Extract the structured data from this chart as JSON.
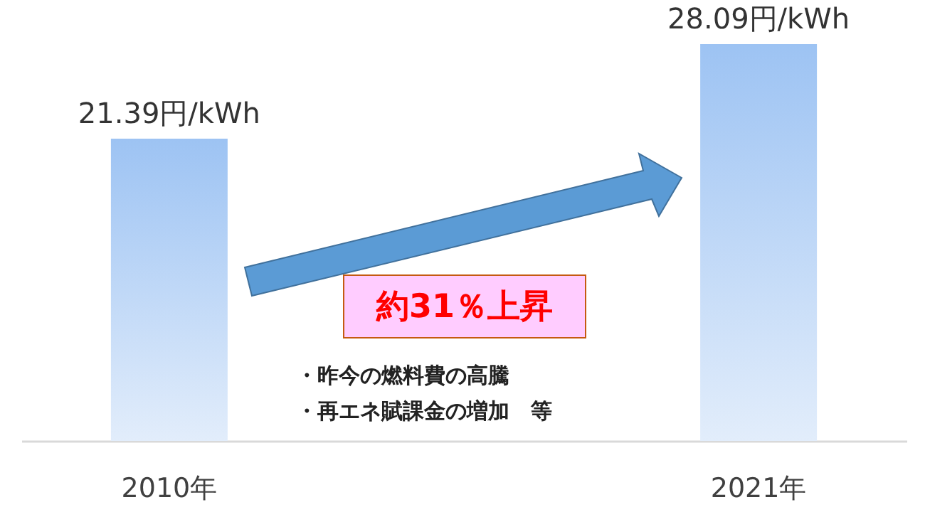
{
  "chart_data": {
    "type": "bar",
    "categories": [
      "2010年",
      "2021年"
    ],
    "values": [
      21.39,
      28.09
    ],
    "value_labels": [
      "21.39円/kWh",
      "28.09円/kWh"
    ],
    "color": "#9dc3f3",
    "tick_labels": "x",
    "annotations": [
      "約31％上昇",
      "・昨今の燃料費の高騰",
      "・再エネ賦課金の増加　等"
    ]
  }
}
